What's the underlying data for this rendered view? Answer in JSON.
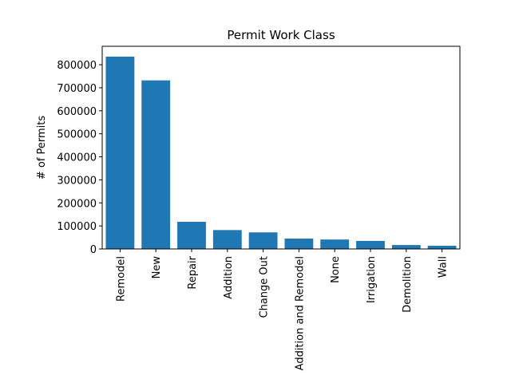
{
  "chart_data": {
    "type": "bar",
    "title": "Permit Work Class",
    "xlabel": "",
    "ylabel": "# of Permits",
    "categories": [
      "Remodel",
      "New",
      "Repair",
      "Addition",
      "Change Out",
      "Addition and Remodel",
      "None",
      "Irrigation",
      "Demolition",
      "Wall"
    ],
    "values": [
      835000,
      732000,
      118000,
      82000,
      72000,
      45000,
      41000,
      35000,
      17000,
      14000
    ],
    "ylim": [
      0,
      880000
    ],
    "yticks": [
      0,
      100000,
      200000,
      300000,
      400000,
      500000,
      600000,
      700000,
      800000
    ],
    "grid": false,
    "bar_color": "#1f77b4"
  }
}
